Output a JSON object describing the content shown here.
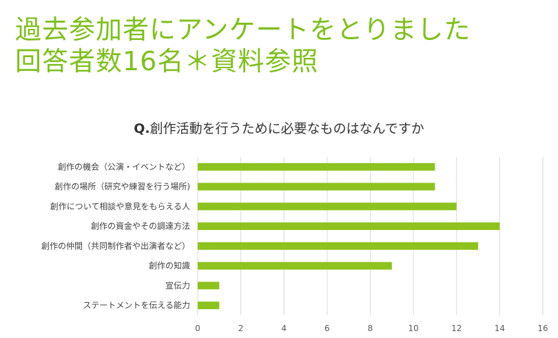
{
  "slide": {
    "title_line1": "過去参加者にアンケートをとりました",
    "title_line2": "回答者数16名＊資料参照",
    "title_color": "#7fbf1f"
  },
  "chart_data": {
    "type": "bar",
    "orientation": "horizontal",
    "title_prefix": "Q.",
    "title": "創作活動を行うために必要なものはなんですか",
    "categories": [
      "創作の機会（公演・イベントなど）",
      "創作の場所（研究や練習を行う場所)",
      "創作について相談や意見をもらえる人",
      "創作の資金やその調達方法",
      "創作の仲間（共同制作者や出演者など）",
      "創作の知識",
      "宣伝力",
      "ステートメントを伝える能力"
    ],
    "values": [
      11,
      11,
      12,
      14,
      13,
      9,
      1,
      1
    ],
    "xlim": [
      0,
      16
    ],
    "xticks": [
      "0",
      "2",
      "4",
      "6",
      "8",
      "10",
      "12",
      "14",
      "16"
    ],
    "grid": true,
    "bar_color": "#8dc21f"
  }
}
